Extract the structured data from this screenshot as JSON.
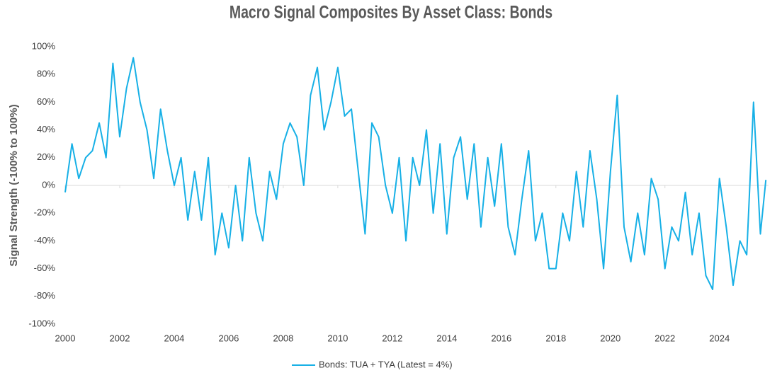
{
  "chart_data": {
    "type": "line",
    "title": "Macro Signal Composites By Asset Class: Bonds",
    "y_label": "Signal Strength (-100% to 100%)",
    "x": [
      2000,
      2000.25,
      2000.5,
      2000.75,
      2001,
      2001.25,
      2001.5,
      2001.75,
      2002,
      2002.25,
      2002.5,
      2002.75,
      2003,
      2003.25,
      2003.5,
      2003.75,
      2004,
      2004.25,
      2004.5,
      2004.75,
      2005,
      2005.25,
      2005.5,
      2005.75,
      2006,
      2006.25,
      2006.5,
      2006.75,
      2007,
      2007.25,
      2007.5,
      2007.75,
      2008,
      2008.25,
      2008.5,
      2008.75,
      2009,
      2009.25,
      2009.5,
      2009.75,
      2010,
      2010.25,
      2010.5,
      2010.75,
      2011,
      2011.25,
      2011.5,
      2011.75,
      2012,
      2012.25,
      2012.5,
      2012.75,
      2013,
      2013.25,
      2013.5,
      2013.75,
      2014,
      2014.25,
      2014.5,
      2014.75,
      2015,
      2015.25,
      2015.5,
      2015.75,
      2016,
      2016.25,
      2016.5,
      2016.75,
      2017,
      2017.25,
      2017.5,
      2017.75,
      2018,
      2018.25,
      2018.5,
      2018.75,
      2019,
      2019.25,
      2019.5,
      2019.75,
      2020,
      2020.25,
      2020.5,
      2020.75,
      2021,
      2021.25,
      2021.5,
      2021.75,
      2022,
      2022.25,
      2022.5,
      2022.75,
      2023,
      2023.25,
      2023.5,
      2023.75,
      2024,
      2024.25,
      2024.5,
      2024.75,
      2025,
      2025.25,
      2025.5,
      2025.7
    ],
    "series": [
      {
        "name": "Bonds: TUA + TYA (Latest = 4%)",
        "color": "#17b0e6",
        "values": [
          -5,
          30,
          5,
          20,
          25,
          45,
          20,
          88,
          35,
          70,
          92,
          60,
          40,
          5,
          55,
          25,
          0,
          20,
          -25,
          10,
          -25,
          20,
          -50,
          -20,
          -45,
          0,
          -40,
          20,
          -20,
          -40,
          10,
          -10,
          30,
          45,
          35,
          0,
          65,
          85,
          40,
          60,
          85,
          50,
          55,
          10,
          -35,
          45,
          35,
          0,
          -20,
          20,
          -40,
          20,
          0,
          40,
          -20,
          30,
          -35,
          20,
          35,
          -10,
          30,
          -30,
          20,
          -15,
          30,
          -30,
          -50,
          -10,
          25,
          -40,
          -20,
          -60,
          -60,
          -20,
          -40,
          10,
          -30,
          25,
          -10,
          -60,
          10,
          65,
          -30,
          -55,
          -20,
          -50,
          5,
          -10,
          -60,
          -30,
          -40,
          -5,
          -50,
          -20,
          -65,
          -75,
          5,
          -30,
          -72,
          -40,
          -50,
          60,
          -35,
          4
        ]
      }
    ],
    "xlim": [
      2000,
      2025.8
    ],
    "xticks": [
      2000,
      2002,
      2004,
      2006,
      2008,
      2010,
      2012,
      2014,
      2016,
      2018,
      2020,
      2022,
      2024
    ],
    "ylim": [
      -100,
      100
    ],
    "yticks": [
      {
        "value": -100,
        "label": "-100%"
      },
      {
        "value": -80,
        "label": "-80%"
      },
      {
        "value": -60,
        "label": "-60%"
      },
      {
        "value": -40,
        "label": "-40%"
      },
      {
        "value": -20,
        "label": "-20%"
      },
      {
        "value": 0,
        "label": "0%"
      },
      {
        "value": 20,
        "label": "20%"
      },
      {
        "value": 40,
        "label": "40%"
      },
      {
        "value": 60,
        "label": "60%"
      },
      {
        "value": 80,
        "label": "80%"
      },
      {
        "value": 100,
        "label": "100%"
      }
    ],
    "legend": "bottom"
  }
}
